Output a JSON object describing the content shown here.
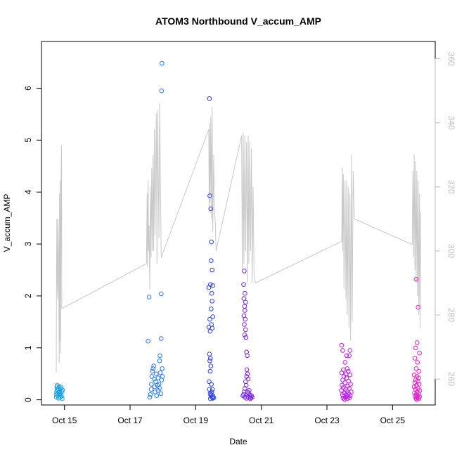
{
  "chart_data": {
    "type": "scatter",
    "title": "ATOM3 Northbound V_accum_AMP",
    "xlabel": "Date",
    "ylabel": "V_accum_AMP",
    "x_ticks": [
      "Oct 15",
      "Oct 17",
      "Oct 19",
      "Oct 21",
      "Oct 23",
      "Oct 25"
    ],
    "x_tick_days": [
      15,
      17,
      19,
      21,
      23,
      25
    ],
    "xlim": [
      14.3,
      26.3
    ],
    "ylim": [
      -0.1,
      6.9
    ],
    "y_ticks": [
      0,
      1,
      2,
      3,
      4,
      5,
      6
    ],
    "y2_ticks": [
      260,
      280,
      300,
      320,
      340,
      360
    ],
    "y2lim": [
      251.9,
      365.4
    ],
    "grid": false,
    "marker": "open-circle",
    "series": [
      {
        "color": "#1aa3e6",
        "points": [
          [
            14.75,
            0.05
          ],
          [
            14.75,
            0.1
          ],
          [
            14.76,
            0.15
          ],
          [
            14.77,
            0.2
          ],
          [
            14.77,
            0.25
          ],
          [
            14.78,
            0.28
          ],
          [
            14.79,
            0.12
          ],
          [
            14.8,
            0.08
          ],
          [
            14.8,
            0.18
          ],
          [
            14.81,
            0.22
          ],
          [
            14.82,
            0.03
          ],
          [
            14.83,
            0.14
          ],
          [
            14.84,
            0.26
          ],
          [
            14.85,
            0.09
          ],
          [
            14.86,
            0.17
          ],
          [
            14.87,
            0.05
          ],
          [
            14.88,
            0.21
          ],
          [
            14.89,
            0.11
          ],
          [
            14.9,
            0.24
          ],
          [
            14.91,
            0.07
          ],
          [
            14.92,
            0.16
          ],
          [
            14.93,
            0.02
          ],
          [
            14.94,
            0.19
          ]
        ]
      },
      {
        "color": "#2b7af0",
        "points": [
          [
            17.55,
            1.13
          ],
          [
            17.58,
            1.98
          ],
          [
            17.6,
            0.05
          ],
          [
            17.62,
            0.1
          ],
          [
            17.64,
            0.2
          ],
          [
            17.65,
            0.3
          ],
          [
            17.66,
            0.45
          ],
          [
            17.68,
            0.55
          ],
          [
            17.7,
            0.6
          ],
          [
            17.72,
            0.65
          ],
          [
            17.74,
            0.4
          ],
          [
            17.75,
            0.25
          ],
          [
            17.76,
            0.15
          ],
          [
            17.78,
            0.35
          ],
          [
            17.8,
            0.5
          ],
          [
            17.81,
            0.08
          ],
          [
            17.83,
            0.28
          ],
          [
            17.85,
            0.42
          ],
          [
            17.86,
            0.18
          ],
          [
            17.88,
            0.3
          ],
          [
            17.9,
            0.22
          ],
          [
            17.92,
            0.52
          ],
          [
            17.94,
            0.12
          ],
          [
            17.96,
            0.38
          ],
          [
            17.98,
            0.6
          ],
          [
            17.99,
            0.45
          ],
          [
            17.9,
            0.75
          ],
          [
            17.91,
            0.85
          ],
          [
            17.95,
            1.18
          ],
          [
            17.95,
            2.04
          ],
          [
            17.96,
            5.95
          ],
          [
            17.97,
            6.48
          ]
        ]
      },
      {
        "color": "#2a3fe8",
        "points": [
          [
            19.42,
            5.8
          ],
          [
            19.43,
            3.93
          ],
          [
            19.46,
            3.68
          ],
          [
            19.48,
            3.04
          ],
          [
            19.47,
            2.68
          ],
          [
            19.5,
            2.5
          ],
          [
            19.45,
            2.22
          ],
          [
            19.52,
            2.2
          ],
          [
            19.4,
            2.16
          ],
          [
            19.49,
            2.05
          ],
          [
            19.5,
            1.9
          ],
          [
            19.47,
            1.75
          ],
          [
            19.52,
            1.6
          ],
          [
            19.43,
            1.55
          ],
          [
            19.48,
            1.45
          ],
          [
            19.4,
            1.4
          ],
          [
            19.44,
            1.32
          ],
          [
            19.5,
            1.38
          ],
          [
            19.42,
            0.88
          ],
          [
            19.45,
            0.8
          ],
          [
            19.43,
            0.75
          ],
          [
            19.46,
            0.65
          ],
          [
            19.44,
            0.55
          ],
          [
            19.41,
            0.35
          ],
          [
            19.48,
            0.3
          ],
          [
            19.42,
            0.2
          ],
          [
            19.44,
            0.12
          ],
          [
            19.46,
            0.08
          ],
          [
            19.5,
            0.05
          ],
          [
            19.52,
            0.03
          ],
          [
            19.45,
            0.02
          ],
          [
            19.47,
            0.1
          ],
          [
            19.49,
            0.15
          ],
          [
            19.51,
            0.2
          ],
          [
            19.53,
            0.07
          ],
          [
            19.55,
            0.04
          ]
        ]
      },
      {
        "color": "#7a22e8",
        "points": [
          [
            20.48,
            2.48
          ],
          [
            20.46,
            2.22
          ],
          [
            20.5,
            2.05
          ],
          [
            20.47,
            1.95
          ],
          [
            20.52,
            1.88
          ],
          [
            20.49,
            1.8
          ],
          [
            20.5,
            1.72
          ],
          [
            20.47,
            1.62
          ],
          [
            20.51,
            1.55
          ],
          [
            20.48,
            1.45
          ],
          [
            20.52,
            1.35
          ],
          [
            20.49,
            1.25
          ],
          [
            20.53,
            1.2
          ],
          [
            20.55,
            0.92
          ],
          [
            20.57,
            0.85
          ],
          [
            20.56,
            0.58
          ],
          [
            20.58,
            0.5
          ],
          [
            20.55,
            0.45
          ],
          [
            20.6,
            0.4
          ],
          [
            20.52,
            0.35
          ],
          [
            20.54,
            0.28
          ],
          [
            20.5,
            0.22
          ],
          [
            20.48,
            0.15
          ],
          [
            20.46,
            0.1
          ],
          [
            20.44,
            0.08
          ],
          [
            20.5,
            0.05
          ],
          [
            20.55,
            0.03
          ],
          [
            20.6,
            0.06
          ],
          [
            20.62,
            0.12
          ],
          [
            20.65,
            0.09
          ],
          [
            20.68,
            0.04
          ],
          [
            20.7,
            0.08
          ],
          [
            20.72,
            0.05
          ],
          [
            20.58,
            0.15
          ],
          [
            20.63,
            0.18
          ],
          [
            20.66,
            0.02
          ]
        ]
      },
      {
        "color": "#b91ee8",
        "points": [
          [
            23.45,
            1.05
          ],
          [
            23.48,
            0.95
          ],
          [
            23.7,
            0.95
          ],
          [
            23.6,
            0.85
          ],
          [
            23.68,
            0.85
          ],
          [
            23.55,
            0.72
          ],
          [
            23.62,
            0.6
          ],
          [
            23.5,
            0.58
          ],
          [
            23.65,
            0.55
          ],
          [
            23.45,
            0.52
          ],
          [
            23.58,
            0.5
          ],
          [
            23.7,
            0.48
          ],
          [
            23.52,
            0.45
          ],
          [
            23.6,
            0.42
          ],
          [
            23.48,
            0.38
          ],
          [
            23.66,
            0.36
          ],
          [
            23.55,
            0.33
          ],
          [
            23.72,
            0.3
          ],
          [
            23.46,
            0.28
          ],
          [
            23.63,
            0.26
          ],
          [
            23.5,
            0.24
          ],
          [
            23.68,
            0.22
          ],
          [
            23.57,
            0.2
          ],
          [
            23.44,
            0.18
          ],
          [
            23.61,
            0.16
          ],
          [
            23.74,
            0.15
          ],
          [
            23.53,
            0.13
          ],
          [
            23.66,
            0.12
          ],
          [
            23.47,
            0.1
          ],
          [
            23.59,
            0.09
          ],
          [
            23.71,
            0.08
          ],
          [
            23.51,
            0.07
          ],
          [
            23.64,
            0.06
          ],
          [
            23.56,
            0.05
          ],
          [
            23.69,
            0.04
          ],
          [
            23.49,
            0.03
          ],
          [
            23.62,
            0.02
          ],
          [
            23.54,
            0.01
          ]
        ]
      },
      {
        "color": "#e81ec8",
        "points": [
          [
            25.72,
            2.32
          ],
          [
            25.78,
            1.78
          ],
          [
            25.75,
            1.1
          ],
          [
            25.7,
            1.0
          ],
          [
            25.82,
            0.9
          ],
          [
            25.68,
            0.8
          ],
          [
            25.76,
            0.72
          ],
          [
            25.72,
            0.6
          ],
          [
            25.8,
            0.55
          ],
          [
            25.66,
            0.48
          ],
          [
            25.74,
            0.45
          ],
          [
            25.79,
            0.42
          ],
          [
            25.7,
            0.38
          ],
          [
            25.77,
            0.36
          ],
          [
            25.68,
            0.33
          ],
          [
            25.81,
            0.3
          ],
          [
            25.73,
            0.28
          ],
          [
            25.66,
            0.25
          ],
          [
            25.78,
            0.22
          ],
          [
            25.7,
            0.2
          ],
          [
            25.83,
            0.18
          ],
          [
            25.75,
            0.15
          ],
          [
            25.67,
            0.13
          ],
          [
            25.8,
            0.12
          ],
          [
            25.72,
            0.1
          ],
          [
            25.76,
            0.08
          ],
          [
            25.69,
            0.07
          ],
          [
            25.82,
            0.06
          ],
          [
            25.74,
            0.05
          ],
          [
            25.78,
            0.04
          ],
          [
            25.71,
            0.03
          ],
          [
            25.8,
            0.02
          ],
          [
            25.73,
            0.01
          ]
        ]
      }
    ],
    "secondary_line": {
      "color": "#c8c8c8",
      "points": [
        [
          14.75,
          262
        ],
        [
          14.76,
          298
        ],
        [
          14.77,
          310
        ],
        [
          14.78,
          290
        ],
        [
          14.8,
          285
        ],
        [
          14.8,
          310
        ],
        [
          14.82,
          300
        ],
        [
          14.84,
          265
        ],
        [
          14.85,
          318
        ],
        [
          14.86,
          272
        ],
        [
          14.87,
          322
        ],
        [
          14.88,
          268
        ],
        [
          14.9,
          325
        ],
        [
          14.91,
          333
        ],
        [
          14.92,
          282
        ],
        [
          17.5,
          296
        ],
        [
          17.52,
          318
        ],
        [
          17.53,
          295
        ],
        [
          17.55,
          322
        ],
        [
          17.56,
          300
        ],
        [
          17.58,
          308
        ],
        [
          17.6,
          288
        ],
        [
          17.62,
          320
        ],
        [
          17.64,
          298
        ],
        [
          17.66,
          326
        ],
        [
          17.68,
          300
        ],
        [
          17.7,
          330
        ],
        [
          17.72,
          300
        ],
        [
          17.74,
          338
        ],
        [
          17.76,
          305
        ],
        [
          17.8,
          343
        ],
        [
          17.82,
          296
        ],
        [
          17.84,
          344
        ],
        [
          17.88,
          304
        ],
        [
          17.9,
          346
        ],
        [
          17.95,
          298
        ],
        [
          19.4,
          338
        ],
        [
          19.41,
          312
        ],
        [
          19.42,
          340
        ],
        [
          19.44,
          315
        ],
        [
          19.46,
          342
        ],
        [
          19.48,
          310
        ],
        [
          19.5,
          345
        ],
        [
          19.52,
          306
        ],
        [
          19.55,
          330
        ],
        [
          19.57,
          314
        ],
        [
          19.6,
          308
        ],
        [
          19.62,
          300
        ],
        [
          20.4,
          336
        ],
        [
          20.42,
          294
        ],
        [
          20.45,
          337
        ],
        [
          20.47,
          296
        ],
        [
          20.5,
          336
        ],
        [
          20.52,
          300
        ],
        [
          20.55,
          334
        ],
        [
          20.58,
          290
        ],
        [
          20.6,
          336
        ],
        [
          20.62,
          296
        ],
        [
          20.65,
          334
        ],
        [
          20.67,
          300
        ],
        [
          20.7,
          332
        ],
        [
          20.72,
          290
        ],
        [
          20.75,
          320
        ],
        [
          20.78,
          292
        ],
        [
          20.82,
          290
        ],
        [
          23.45,
          303
        ],
        [
          23.47,
          326
        ],
        [
          23.48,
          300
        ],
        [
          23.5,
          324
        ],
        [
          23.52,
          288
        ],
        [
          23.55,
          322
        ],
        [
          23.58,
          285
        ],
        [
          23.6,
          322
        ],
        [
          23.62,
          280
        ],
        [
          23.65,
          320
        ],
        [
          23.67,
          276
        ],
        [
          23.7,
          318
        ],
        [
          23.72,
          272
        ],
        [
          23.75,
          330
        ],
        [
          23.77,
          278
        ],
        [
          23.8,
          325
        ],
        [
          23.82,
          316
        ],
        [
          23.84,
          310
        ],
        [
          25.6,
          302
        ],
        [
          25.62,
          325
        ],
        [
          25.64,
          298
        ],
        [
          25.66,
          330
        ],
        [
          25.68,
          294
        ],
        [
          25.7,
          328
        ],
        [
          25.72,
          290
        ],
        [
          25.74,
          325
        ],
        [
          25.76,
          286
        ],
        [
          25.78,
          322
        ],
        [
          25.8,
          280
        ],
        [
          25.82,
          318
        ],
        [
          25.84,
          276
        ],
        [
          25.86,
          312
        ]
      ]
    }
  }
}
